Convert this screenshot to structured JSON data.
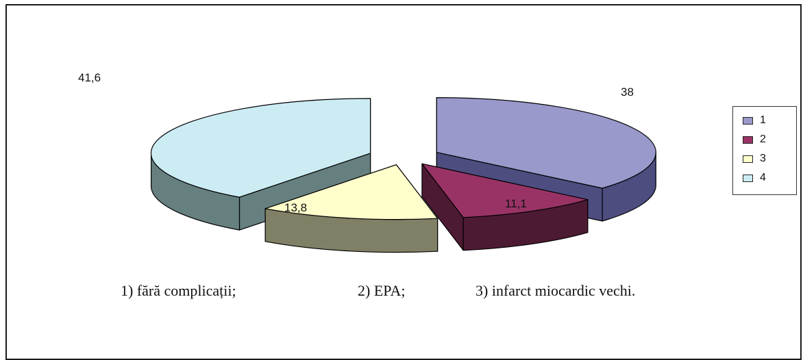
{
  "chart_data": {
    "type": "pie",
    "categories": [
      "1",
      "2",
      "3",
      "4"
    ],
    "values": [
      38,
      11.1,
      13.8,
      41.6
    ],
    "value_labels": [
      "38",
      "11,1",
      "13,8",
      "41,6"
    ],
    "colors": {
      "1": {
        "top": "#9999cc",
        "side": "#4d4d80"
      },
      "2": {
        "top": "#993366",
        "side": "#4d1a33"
      },
      "3": {
        "top": "#ffffcc",
        "side": "#808066"
      },
      "4": {
        "top": "#ccecf4",
        "side": "#668080"
      }
    },
    "exploded": true,
    "three_d": true,
    "legend_position": "right"
  },
  "caption": {
    "item1": "1) fără complicații;",
    "item2": "2) EPA;",
    "item3": "3) infarct miocardic vechi."
  }
}
